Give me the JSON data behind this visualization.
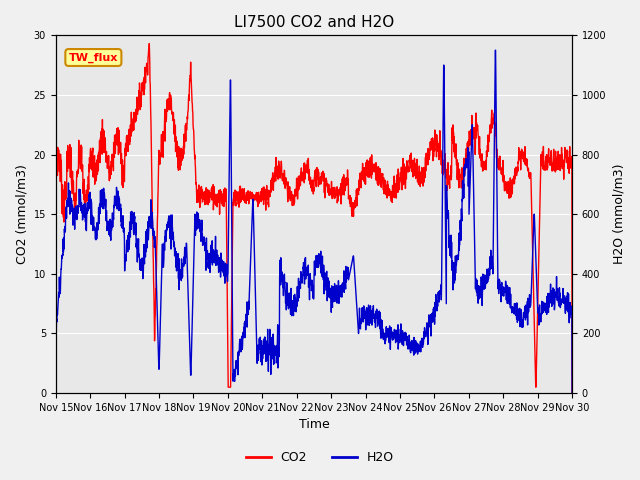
{
  "title": "LI7500 CO2 and H2O",
  "xlabel": "Time",
  "ylabel_left": "CO2 (mmol/m3)",
  "ylabel_right": "H2O (mmol/m3)",
  "ylim_left": [
    0,
    30
  ],
  "ylim_right": [
    0,
    1200
  ],
  "co2_color": "#ff0000",
  "h2o_color": "#0000cc",
  "fig_facecolor": "#f0f0f0",
  "plot_facecolor": "#e8e8e8",
  "annotation_text": "TW_flux",
  "annotation_bg": "#ffff99",
  "annotation_border": "#cc8800",
  "legend_co2": "CO2",
  "legend_h2o": "H2O",
  "x_tick_labels": [
    "Nov 15",
    "Nov 16",
    "Nov 17",
    "Nov 18",
    "Nov 19",
    "Nov 20",
    "Nov 21",
    "Nov 22",
    "Nov 23",
    "Nov 24",
    "Nov 25",
    "Nov 26",
    "Nov 27",
    "Nov 28",
    "Nov 29",
    "Nov 30"
  ],
  "line_width": 1.0,
  "title_fontsize": 11,
  "tick_fontsize": 7,
  "label_fontsize": 9
}
